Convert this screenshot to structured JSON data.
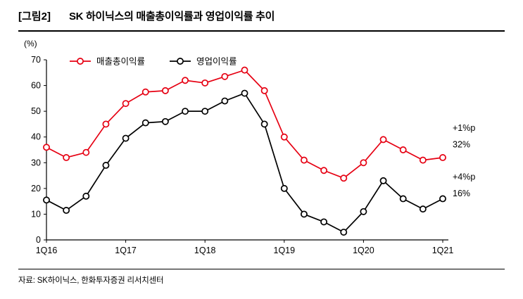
{
  "header": {
    "tag": "[그림2]",
    "title": "SK 하이닉스의 매출총이익률과 영업이익률 추이"
  },
  "chart_data": {
    "type": "line",
    "unit_label": "(%)",
    "ylim": [
      0,
      70
    ],
    "ytick_step": 10,
    "x_major_tick_labels": [
      "1Q16",
      "1Q17",
      "1Q18",
      "1Q19",
      "1Q20",
      "1Q21"
    ],
    "categories": [
      "1Q16",
      "2Q16",
      "3Q16",
      "4Q16",
      "1Q17",
      "2Q17",
      "3Q17",
      "4Q17",
      "1Q18",
      "2Q18",
      "3Q18",
      "4Q18",
      "1Q19",
      "2Q19",
      "3Q19",
      "4Q19",
      "1Q20",
      "2Q20",
      "3Q20",
      "4Q20",
      "1Q21"
    ],
    "series": [
      {
        "name": "매출총이익률",
        "color": "#e60012",
        "values": [
          36,
          32,
          34,
          45,
          53,
          57.5,
          58,
          62,
          61,
          63.5,
          66,
          58,
          40,
          31,
          27,
          24,
          30,
          39,
          35,
          31,
          32
        ]
      },
      {
        "name": "영업이익률",
        "color": "#000000",
        "values": [
          15.5,
          11.5,
          17,
          29,
          39.5,
          45.5,
          46,
          50,
          50,
          54,
          57,
          45,
          20,
          10,
          7,
          3,
          11,
          23,
          16,
          12,
          16
        ]
      }
    ],
    "legend_position": "top-left-inside",
    "grid": false,
    "annotations": [
      {
        "text": "+1%p",
        "y": 43.5
      },
      {
        "text": "32%",
        "y": 37
      },
      {
        "text": "+4%p",
        "y": 24.5
      },
      {
        "text": "16%",
        "y": 18
      }
    ]
  },
  "footer": {
    "source": "자료: SK하이닉스, 한화투자증권 리서치센터"
  }
}
